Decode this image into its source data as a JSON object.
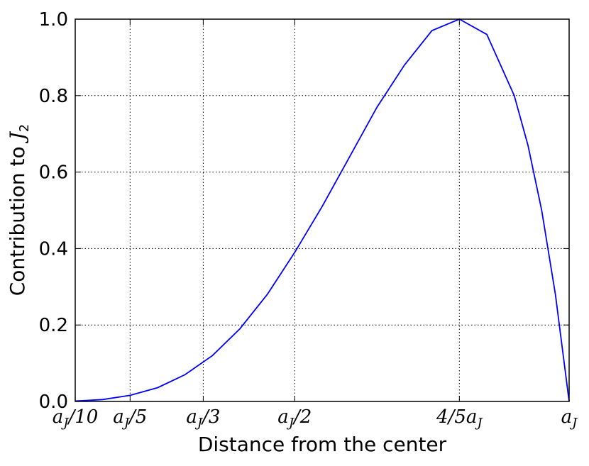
{
  "chart_data": {
    "type": "line",
    "x_label": "Distance from the center",
    "y_label": "Contribution to J2",
    "x": [
      0.1,
      0.15,
      0.2,
      0.25,
      0.3,
      0.35,
      0.4,
      0.45,
      0.5,
      0.55,
      0.6,
      0.65,
      0.7,
      0.75,
      0.8,
      0.85,
      0.9,
      0.925,
      0.95,
      0.975,
      1.0
    ],
    "series": [
      {
        "color": "#0000ff",
        "values": [
          0.001,
          0.005,
          0.016,
          0.036,
          0.07,
          0.12,
          0.19,
          0.28,
          0.39,
          0.51,
          0.64,
          0.77,
          0.88,
          0.97,
          1.0,
          0.96,
          0.8,
          0.67,
          0.5,
          0.28,
          0.0
        ]
      }
    ],
    "xlim": [
      0.1,
      1.0
    ],
    "ylim": [
      0,
      1.0
    ],
    "xticks": [
      {
        "value": 0.1,
        "label": "aJ/10"
      },
      {
        "value": 0.2,
        "label": "aJ/5"
      },
      {
        "value": 0.3333,
        "label": "aJ/3"
      },
      {
        "value": 0.5,
        "label": "aJ/2"
      },
      {
        "value": 0.8,
        "label": "4/5aJ"
      },
      {
        "value": 1.0,
        "label": "aJ"
      }
    ],
    "yticks": [
      {
        "value": 0,
        "label": "0.0"
      },
      0.2,
      0.4,
      0.6,
      0.8,
      {
        "value": 1.0,
        "label": "1.0"
      }
    ],
    "grid": true
  }
}
